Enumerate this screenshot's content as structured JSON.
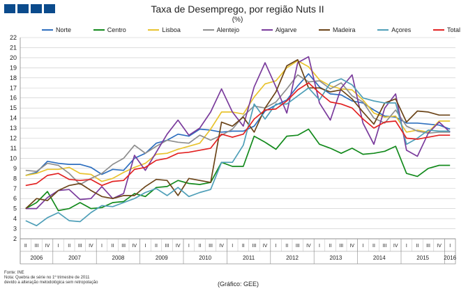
{
  "header": {
    "title": "Taxa de Desemprego, por região Nuts II",
    "unit": "(%)"
  },
  "footer": {
    "source": "Fonte: INE",
    "note1": "Nota: Quebra de série no 1º trimestre de 2011",
    "note2": "devido a alteração metodológica sem retropolação",
    "credit": "(Gráfico: GEE)"
  },
  "chart_data": {
    "type": "line",
    "title": "Taxa de Desemprego, por região Nuts II",
    "ylabel": "(%)",
    "ylim": [
      2,
      22
    ],
    "yticks": [
      2,
      3,
      4,
      5,
      6,
      7,
      8,
      9,
      10,
      11,
      12,
      13,
      14,
      15,
      16,
      17,
      18,
      19,
      20,
      21,
      22
    ],
    "grid": true,
    "legend_position": "top",
    "quarters": [
      "II",
      "III",
      "IV",
      "I",
      "II",
      "III",
      "IV",
      "I",
      "II",
      "III",
      "IV",
      "I",
      "II",
      "III",
      "IV",
      "I",
      "II",
      "III",
      "IV",
      "I",
      "II",
      "III",
      "IV",
      "I",
      "II",
      "III",
      "IV",
      "I",
      "II",
      "III",
      "IV",
      "I",
      "II",
      "III",
      "IV",
      "I",
      "II",
      "III",
      "IV",
      "I"
    ],
    "years": [
      {
        "label": "2006",
        "start": 0,
        "end": 2
      },
      {
        "label": "2007",
        "start": 3,
        "end": 6
      },
      {
        "label": "2008",
        "start": 7,
        "end": 10
      },
      {
        "label": "2009",
        "start": 11,
        "end": 14
      },
      {
        "label": "2010",
        "start": 15,
        "end": 18
      },
      {
        "label": "2011",
        "start": 19,
        "end": 22
      },
      {
        "label": "2012",
        "start": 23,
        "end": 26
      },
      {
        "label": "2013",
        "start": 27,
        "end": 30
      },
      {
        "label": "2014",
        "start": 31,
        "end": 34
      },
      {
        "label": "2015",
        "start": 35,
        "end": 38
      },
      {
        "label": "2016",
        "start": 39,
        "end": 39
      }
    ],
    "series": [
      {
        "name": "Norte",
        "color": "#2e6fbf",
        "values": [
          8.3,
          8.6,
          9.7,
          9.5,
          9.4,
          9.4,
          9.1,
          8.4,
          8.9,
          8.8,
          10.0,
          10.5,
          11.5,
          11.8,
          12.4,
          12.2,
          12.9,
          12.8,
          12.6,
          12.7,
          12.7,
          13.2,
          14.7,
          15.3,
          15.8,
          17.2,
          18.4,
          17.1,
          16.4,
          16.3,
          15.7,
          15.5,
          14.8,
          14.2,
          14.1,
          13.5,
          13.5,
          13.4,
          13.3,
          12.9
        ]
      },
      {
        "name": "Centro",
        "color": "#138a1c",
        "values": [
          5.0,
          5.6,
          6.7,
          4.8,
          5.0,
          5.6,
          5.0,
          5.1,
          5.6,
          5.7,
          6.5,
          6.2,
          7.1,
          7.2,
          7.8,
          7.5,
          7.4,
          7.6,
          9.6,
          9.2,
          9.2,
          12.2,
          11.6,
          10.9,
          12.2,
          12.3,
          12.9,
          11.4,
          11.0,
          10.5,
          11.0,
          10.4,
          10.5,
          10.7,
          11.2,
          8.5,
          8.2,
          9.0,
          9.3,
          9.3
        ]
      },
      {
        "name": "Lisboa",
        "color": "#e8c32e",
        "values": [
          8.3,
          8.5,
          8.9,
          8.9,
          9.1,
          8.5,
          8.4,
          7.7,
          8.0,
          8.6,
          9.1,
          9.5,
          10.4,
          10.5,
          10.9,
          11.2,
          11.5,
          12.9,
          14.6,
          14.6,
          14.4,
          16.1,
          17.4,
          17.7,
          19.0,
          19.7,
          19.1,
          17.8,
          17.2,
          16.9,
          16.8,
          15.8,
          14.5,
          14.1,
          14.2,
          12.6,
          12.8,
          12.6,
          13.7,
          13.7
        ]
      },
      {
        "name": "Alentejo",
        "color": "#8e8e8e",
        "values": [
          8.8,
          8.7,
          9.5,
          9.3,
          8.5,
          7.4,
          8.0,
          8.5,
          9.4,
          10.0,
          11.3,
          10.5,
          11.2,
          11.8,
          11.6,
          11.5,
          12.3,
          11.8,
          12.3,
          12.9,
          14.2,
          15.2,
          15.0,
          15.6,
          16.9,
          18.3,
          17.6,
          17.7,
          16.9,
          17.5,
          16.2,
          15.6,
          14.0,
          13.5,
          14.8,
          13.2,
          12.7,
          12.5,
          12.6,
          12.6
        ]
      },
      {
        "name": "Algarve",
        "color": "#7a3b9c",
        "values": [
          5.0,
          5.0,
          6.1,
          6.8,
          6.9,
          5.9,
          6.0,
          7.2,
          6.0,
          6.5,
          10.3,
          8.8,
          10.6,
          12.4,
          13.8,
          12.3,
          13.0,
          14.6,
          16.9,
          14.6,
          13.2,
          17.1,
          19.5,
          17.1,
          14.5,
          19.5,
          20.1,
          15.5,
          13.8,
          17.0,
          18.3,
          13.5,
          11.4,
          15.0,
          16.4,
          10.8,
          10.2,
          12.5,
          13.6,
          12.6
        ]
      },
      {
        "name": "Madeira",
        "color": "#6b4418",
        "values": [
          5.0,
          6.0,
          5.8,
          6.8,
          7.3,
          7.5,
          6.8,
          6.2,
          6.0,
          6.3,
          6.3,
          7.2,
          7.9,
          7.8,
          6.3,
          8.0,
          7.8,
          7.6,
          13.6,
          13.2,
          14.1,
          12.6,
          15.0,
          16.6,
          19.2,
          19.8,
          17.0,
          17.0,
          16.6,
          16.8,
          15.9,
          14.6,
          13.4,
          15.5,
          15.9,
          13.6,
          14.7,
          14.6,
          14.3,
          14.3
        ]
      },
      {
        "name": "Açores",
        "color": "#4f9fb8",
        "values": [
          3.8,
          3.3,
          4.1,
          4.6,
          3.8,
          3.7,
          4.6,
          5.3,
          5.2,
          5.6,
          6.0,
          6.6,
          7.0,
          6.3,
          7.1,
          6.2,
          6.6,
          6.9,
          9.6,
          9.6,
          11.3,
          15.4,
          13.9,
          15.4,
          15.4,
          16.2,
          17.0,
          15.8,
          17.5,
          17.9,
          17.3,
          16.0,
          15.7,
          15.5,
          15.5,
          11.4,
          12.0,
          12.8,
          12.7,
          12.7
        ]
      },
      {
        "name": "Total",
        "color": "#e22222",
        "values": [
          7.3,
          7.5,
          8.3,
          8.5,
          7.9,
          7.8,
          7.9,
          7.3,
          7.7,
          7.8,
          8.9,
          9.1,
          9.8,
          10.0,
          10.5,
          10.6,
          10.8,
          11.0,
          12.4,
          12.1,
          12.4,
          13.9,
          14.8,
          14.9,
          15.7,
          16.8,
          17.5,
          16.5,
          15.6,
          15.4,
          15.0,
          13.9,
          13.0,
          13.6,
          13.7,
          12.0,
          11.9,
          12.1,
          12.3,
          12.3
        ]
      }
    ]
  }
}
